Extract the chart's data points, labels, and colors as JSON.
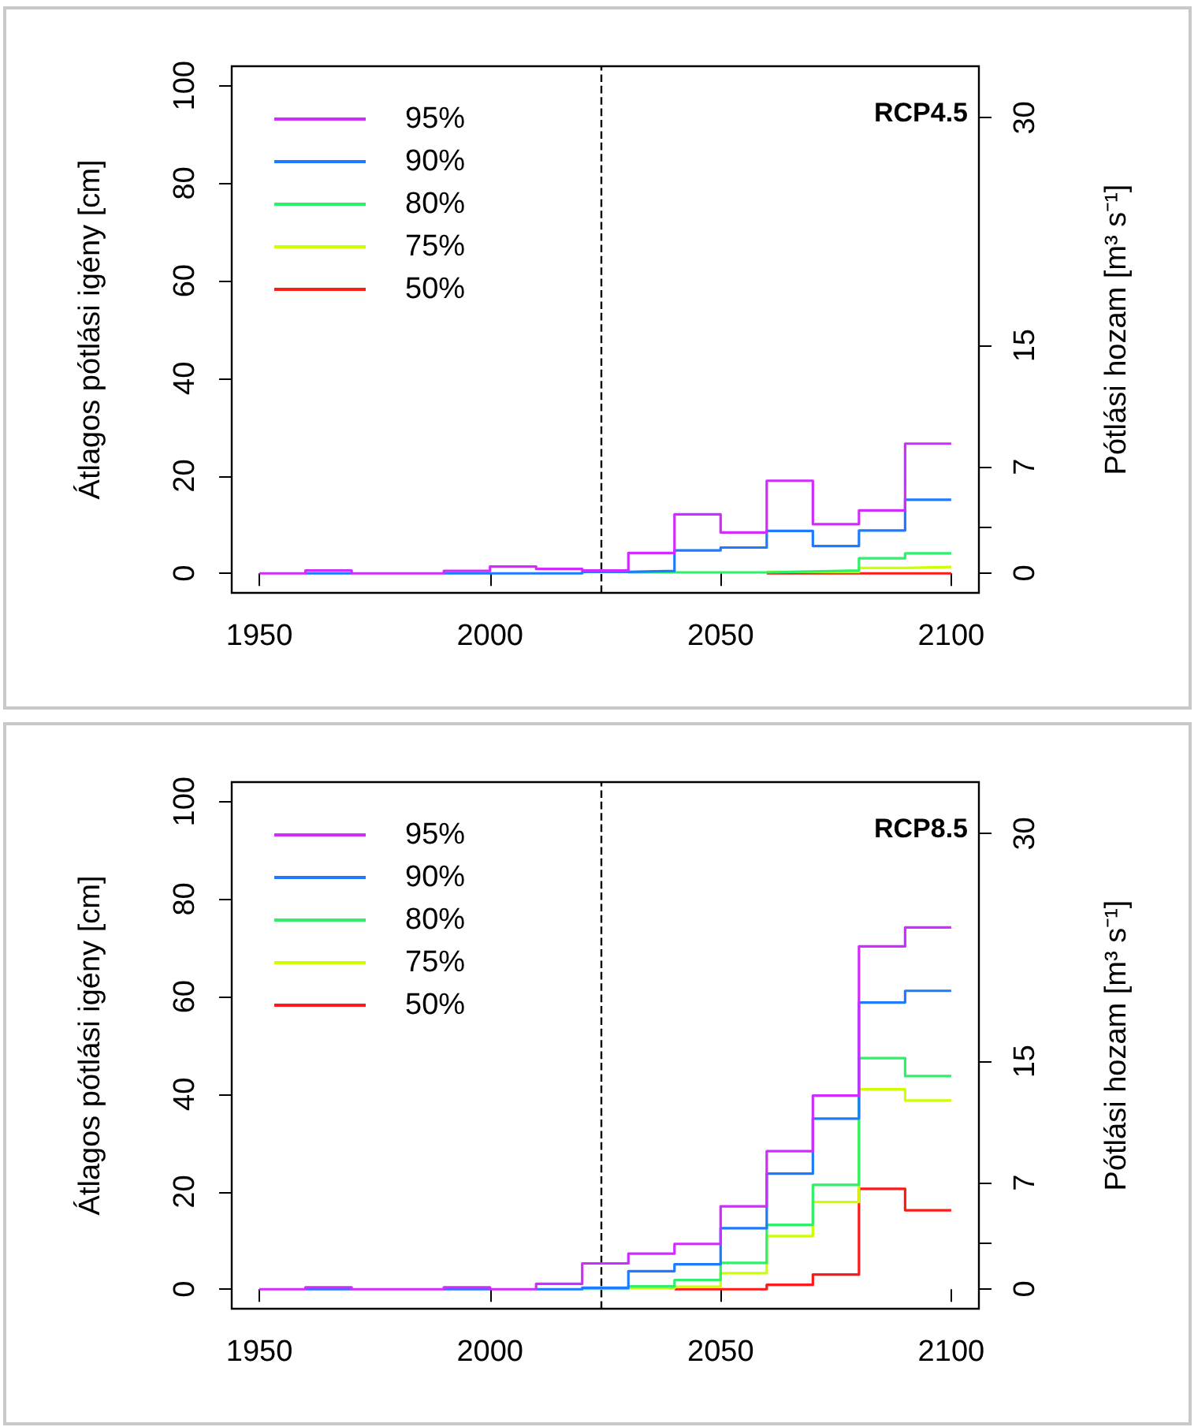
{
  "chart_data": [
    {
      "type": "step",
      "title": "RCP4.5",
      "ylabel": "Átlagos pótlási igény [cm]",
      "y2label": "Pótlási hozam [m³ s⁻¹]",
      "x": [
        1950,
        1960,
        1970,
        1980,
        1990,
        2000,
        2010,
        2020,
        2030,
        2040,
        2050,
        2060,
        2070,
        2080,
        2090,
        2100
      ],
      "series": [
        {
          "name": "95%",
          "color": "#d02cff",
          "values": [
            0,
            0.6,
            0,
            0,
            0.5,
            1.4,
            0.9,
            0.6,
            4.2,
            12.1,
            8.4,
            19.0,
            10.1,
            12.9,
            26.6,
            26.6
          ]
        },
        {
          "name": "90%",
          "color": "#1e7bff",
          "values": [
            null,
            0,
            null,
            null,
            0,
            0,
            0,
            0.3,
            0.5,
            4.7,
            5.3,
            8.7,
            5.6,
            8.8,
            15.1,
            15.1
          ]
        },
        {
          "name": "80%",
          "color": "#2ef06a",
          "values": [
            null,
            null,
            null,
            null,
            null,
            null,
            null,
            null,
            0.2,
            0.2,
            0.2,
            0.4,
            0.6,
            3.1,
            4.1,
            4.1
          ]
        },
        {
          "name": "75%",
          "color": "#ccff00",
          "values": [
            null,
            null,
            null,
            null,
            null,
            null,
            null,
            null,
            null,
            null,
            null,
            0.3,
            0.3,
            1.1,
            1.3,
            1.3
          ]
        },
        {
          "name": "50%",
          "color": "#ff1a1a",
          "values": [
            null,
            null,
            null,
            null,
            null,
            null,
            null,
            null,
            null,
            null,
            null,
            0,
            0,
            0,
            0,
            0
          ]
        }
      ],
      "xlim": [
        1944,
        2106
      ],
      "xticks": [
        1950,
        2000,
        2050,
        2100
      ],
      "ylim": [
        -4,
        104
      ],
      "yticks": [
        0,
        20,
        40,
        60,
        80,
        100
      ],
      "y2lim": [
        -1.3,
        33.4
      ],
      "y2ticks": [
        0,
        {
          "value": 3,
          "label": null
        },
        7,
        15,
        30
      ],
      "ref_lines": [
        {
          "axis": "x",
          "value": 2024,
          "color": "#000000",
          "line_style": "dashed"
        }
      ],
      "legend": "top left",
      "grid": false
    },
    {
      "type": "step",
      "title": "RCP8.5",
      "ylabel": "Átlagos pótlási igény [cm]",
      "y2label": "Pótlási hozam [m³ s⁻¹]",
      "x": [
        1950,
        1960,
        1970,
        1980,
        1990,
        2000,
        2010,
        2020,
        2030,
        2040,
        2050,
        2060,
        2070,
        2080,
        2090,
        2100
      ],
      "series": [
        {
          "name": "95%",
          "color": "#d02cff",
          "values": [
            0,
            0.4,
            0,
            0,
            0.4,
            0,
            1.1,
            5.3,
            7.3,
            9.3,
            17.0,
            28.3,
            39.7,
            70.3,
            74.2,
            74.2
          ]
        },
        {
          "name": "90%",
          "color": "#1e7bff",
          "values": [
            null,
            0,
            null,
            null,
            0,
            null,
            0,
            0.3,
            3.7,
            5.1,
            12.5,
            23.7,
            35.0,
            58.8,
            61.2,
            61.2
          ]
        },
        {
          "name": "80%",
          "color": "#2ef06a",
          "values": [
            null,
            null,
            null,
            null,
            null,
            null,
            null,
            0.1,
            0.6,
            1.9,
            5.4,
            13.2,
            21.4,
            47.4,
            43.7,
            43.7
          ]
        },
        {
          "name": "75%",
          "color": "#ccff00",
          "values": [
            null,
            null,
            null,
            null,
            null,
            null,
            null,
            null,
            0.2,
            0.5,
            3.3,
            10.9,
            17.9,
            41.0,
            38.7,
            38.7
          ]
        },
        {
          "name": "50%",
          "color": "#ff1a1a",
          "values": [
            null,
            null,
            null,
            null,
            null,
            null,
            null,
            null,
            null,
            0,
            0,
            0.9,
            3.0,
            20.6,
            16.2,
            16.2
          ]
        }
      ],
      "xlim": [
        1944,
        2106
      ],
      "xticks": [
        1950,
        2000,
        2050,
        2100
      ],
      "ylim": [
        -4,
        104
      ],
      "yticks": [
        0,
        20,
        40,
        60,
        80,
        100
      ],
      "y2lim": [
        -1.3,
        33.4
      ],
      "y2ticks": [
        0,
        {
          "value": 3,
          "label": null
        },
        7,
        15,
        30
      ],
      "ref_lines": [
        {
          "axis": "x",
          "value": 2024,
          "color": "#000000",
          "line_style": "dashed"
        }
      ],
      "legend": "top left",
      "grid": false
    }
  ]
}
